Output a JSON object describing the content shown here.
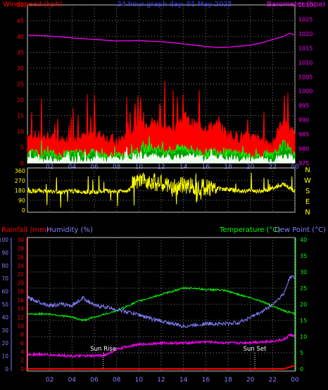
{
  "chart_data": [
    {
      "type": "line",
      "panel": "wind-barometer",
      "title": "24 hour graph day: 01 May 2025",
      "ylabel_left": "Windspeed (kph)",
      "ylabel_right": "Barometer (hpa)",
      "ylim_left": [
        0,
        50
      ],
      "ylim_right": [
        975,
        1030
      ],
      "yticks_left": [
        "0",
        "5",
        "10",
        "15",
        "20",
        "25",
        "30",
        "35",
        "40",
        "45",
        "50"
      ],
      "yticks_right": [
        "975",
        "980",
        "985",
        "990",
        "995",
        "1000",
        "1005",
        "1010",
        "1015",
        "1020",
        "1025",
        "1030"
      ],
      "xticks": [
        "02",
        "04",
        "06",
        "08",
        "10",
        "12",
        "14",
        "16",
        "18",
        "20",
        "22",
        "00"
      ],
      "grid": true,
      "series": [
        {
          "name": "",
          "role": "gust",
          "color": "#ff0000",
          "x": [
            0,
            1,
            2,
            3,
            4,
            5,
            6,
            7,
            8,
            9,
            10,
            11,
            12,
            13,
            14,
            15,
            16,
            17,
            18,
            19,
            20,
            21,
            22,
            23,
            24
          ],
          "values": [
            9,
            8,
            8,
            7,
            7,
            8,
            9,
            8,
            6,
            9,
            11,
            13,
            12,
            10,
            14,
            12,
            11,
            12,
            9,
            8,
            8,
            7,
            6,
            14,
            8
          ]
        },
        {
          "name": "",
          "role": "average",
          "color": "#00ff00",
          "x": [
            0,
            1,
            2,
            3,
            4,
            5,
            6,
            7,
            8,
            9,
            10,
            11,
            12,
            13,
            14,
            15,
            16,
            17,
            18,
            19,
            20,
            21,
            22,
            23,
            24
          ],
          "values": [
            3,
            3,
            3,
            2,
            3,
            3,
            3,
            2,
            2,
            3,
            4,
            5,
            4,
            4,
            5,
            4,
            3,
            4,
            3,
            3,
            2,
            2,
            2,
            6,
            3
          ]
        },
        {
          "name": "",
          "role": "speed",
          "color": "#ffffff",
          "x": [
            0,
            1,
            2,
            3,
            4,
            5,
            6,
            7,
            8,
            9,
            10,
            11,
            12,
            13,
            14,
            15,
            16,
            17,
            18,
            19,
            20,
            21,
            22,
            23,
            24
          ],
          "values": [
            1,
            1,
            1,
            1,
            1,
            1,
            1,
            1,
            1,
            1,
            2,
            2,
            2,
            1,
            2,
            2,
            1,
            2,
            1,
            1,
            1,
            1,
            1,
            2,
            1
          ]
        },
        {
          "name": "",
          "role": "barometer",
          "color": "#ff00ff",
          "axis": "right",
          "x": [
            0,
            2,
            4,
            6,
            8,
            10,
            12,
            14,
            16,
            17,
            18,
            20,
            21,
            22,
            23,
            23.5,
            24
          ],
          "values": [
            1019.5,
            1019.2,
            1018.5,
            1018,
            1017.5,
            1017.6,
            1017.2,
            1016.5,
            1015.5,
            1015.2,
            1015.3,
            1016,
            1016.8,
            1018,
            1019,
            1020.2,
            1019.5
          ]
        }
      ]
    },
    {
      "type": "scatter",
      "panel": "wind-direction",
      "ylim": [
        0,
        360
      ],
      "yticks": [
        "0",
        "90",
        "180",
        "270",
        "360"
      ],
      "compass": [
        "N",
        "W",
        "S",
        "E",
        "N"
      ],
      "xticks": [
        "02",
        "04",
        "06",
        "08",
        "10",
        "12",
        "14",
        "16",
        "18",
        "20",
        "22",
        "00"
      ],
      "series": [
        {
          "name": "",
          "color": "#ffff00",
          "x": [
            0,
            1,
            2,
            3,
            4,
            5,
            6,
            7,
            8,
            9,
            10,
            11,
            12,
            13,
            14,
            15,
            16,
            17,
            18,
            19,
            20,
            21,
            22,
            23,
            24
          ],
          "values": [
            170,
            180,
            170,
            165,
            175,
            170,
            160,
            175,
            170,
            180,
            260,
            270,
            240,
            200,
            230,
            220,
            210,
            200,
            190,
            175,
            180,
            170,
            200,
            240,
            170
          ]
        }
      ]
    },
    {
      "type": "line",
      "panel": "rain-humidity-temperature",
      "ylabel_left_outer": "Rainfall (mm)",
      "ylabel_left_inner": "Humidity (%)",
      "ylabel_right_inner": "Temperature (°C)",
      "ylabel_right_outer": "Dew Point (°C)",
      "yticks_rain": [
        "0",
        "2",
        "4",
        "6",
        "8",
        "10",
        "12",
        "14",
        "16",
        "18",
        "20",
        "22",
        "24",
        "26",
        "28",
        "30"
      ],
      "yticks_humidity": [
        "0",
        "10",
        "20",
        "30",
        "40",
        "50",
        "60",
        "70",
        "80",
        "90",
        "100"
      ],
      "yticks_temp": [
        "0",
        "5",
        "10",
        "15",
        "20",
        "25",
        "30",
        "35",
        "40"
      ],
      "ylim_rain": [
        0,
        30
      ],
      "ylim_humidity": [
        0,
        100
      ],
      "ylim_temp": [
        0,
        40
      ],
      "xticks": [
        "02",
        "04",
        "06",
        "08",
        "10",
        "12",
        "14",
        "16",
        "18",
        "20",
        "22",
        "00"
      ],
      "annotations": [
        {
          "text": "Sun Rise",
          "x": 6.8
        },
        {
          "text": "Sun Set",
          "x": 20.4
        }
      ],
      "grid": true,
      "series": [
        {
          "name": "",
          "role": "humidity",
          "color": "#8080ff",
          "axis": "humidity",
          "x": [
            0,
            1,
            2,
            3,
            4,
            5,
            6,
            7,
            8,
            9,
            10,
            11,
            12,
            13,
            14,
            15,
            16,
            17,
            18,
            19,
            20,
            21,
            22,
            23,
            23.6,
            24
          ],
          "values": [
            55,
            52,
            49,
            50,
            49,
            55,
            49,
            48,
            46,
            44,
            42,
            39,
            37,
            35,
            33,
            34,
            35,
            35,
            35,
            36,
            40,
            44,
            50,
            58,
            72,
            70
          ]
        },
        {
          "name": "",
          "role": "temperature",
          "color": "#00ff00",
          "axis": "temp",
          "x": [
            0,
            1,
            2,
            3,
            4,
            5,
            6,
            7,
            8,
            9,
            10,
            11,
            12,
            13,
            14,
            15,
            16,
            17,
            18,
            19,
            20,
            21,
            22,
            23,
            24
          ],
          "values": [
            17,
            17,
            17,
            16.5,
            16,
            15,
            16,
            17,
            18,
            19.5,
            21,
            22,
            23,
            24,
            25,
            25,
            24.5,
            24.5,
            24,
            23,
            22,
            21,
            19.5,
            18,
            17
          ]
        },
        {
          "name": "",
          "role": "dewpoint",
          "color": "#ff00ff",
          "axis": "temp",
          "x": [
            0,
            1,
            2,
            3,
            4,
            5,
            6,
            7,
            8,
            9,
            10,
            11,
            12,
            13,
            14,
            15,
            16,
            17,
            18,
            19,
            20,
            21,
            22,
            23,
            23.5,
            24
          ],
          "values": [
            4.5,
            4.5,
            4.3,
            4.2,
            4,
            4,
            4,
            4.3,
            6,
            7,
            7.5,
            7.8,
            8,
            8,
            8,
            8.2,
            8.4,
            8.2,
            8,
            8,
            8.2,
            8.4,
            8.6,
            9,
            10.5,
            10.2
          ]
        },
        {
          "name": "",
          "role": "rainfall",
          "color": "#ff0000",
          "axis": "rain",
          "x": [
            0,
            23,
            23.5,
            24
          ],
          "values": [
            0,
            0,
            0.4,
            0.8
          ]
        }
      ]
    }
  ]
}
